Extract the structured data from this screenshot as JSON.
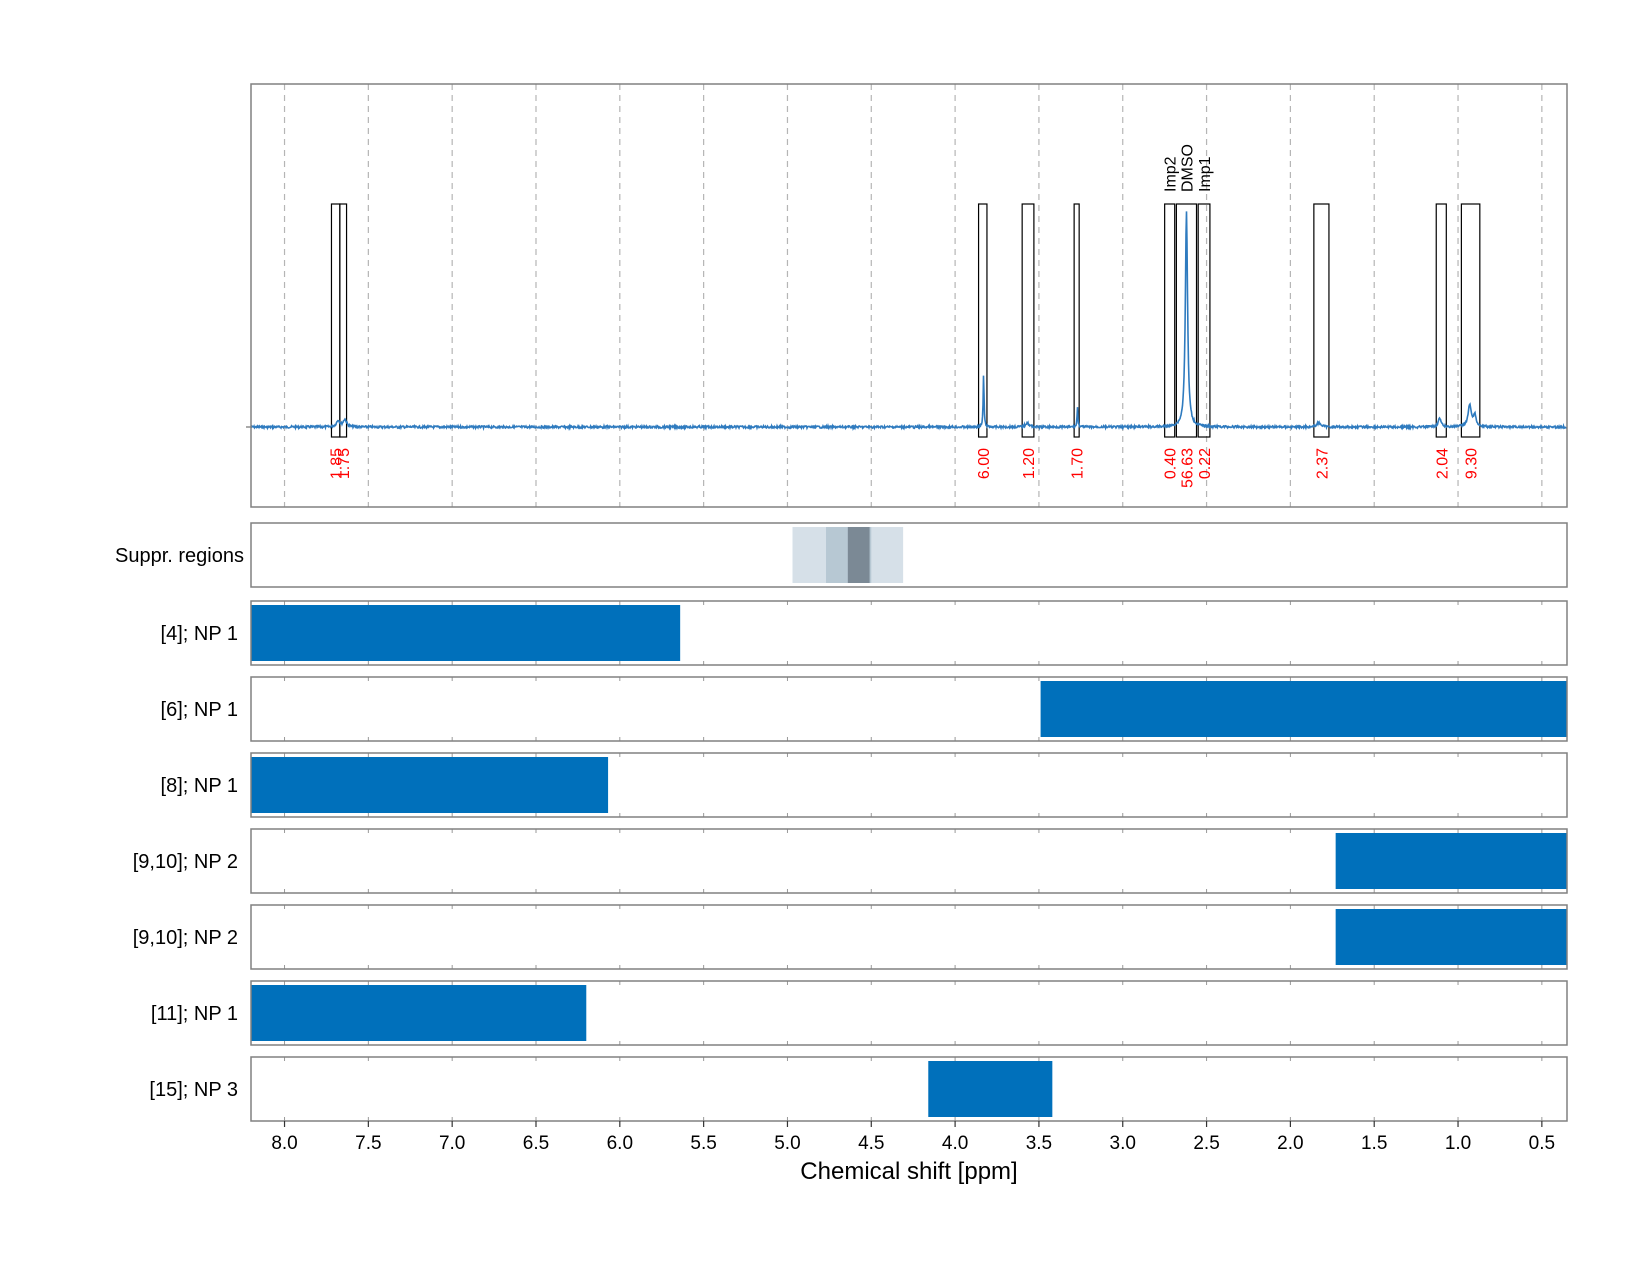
{
  "chart_data": {
    "type": "line",
    "xlabel": "Chemical shift [ppm]",
    "xlim": [
      8.2,
      0.35
    ],
    "x_reversed": true,
    "xticks": [
      8.0,
      7.5,
      7.0,
      6.5,
      6.0,
      5.5,
      5.0,
      4.5,
      4.0,
      3.5,
      3.0,
      2.5,
      2.0,
      1.5,
      1.0,
      0.5
    ],
    "xtick_labels": [
      "8.0",
      "7.5",
      "7.0",
      "6.5",
      "6.0",
      "5.5",
      "5.0",
      "4.5",
      "4.0",
      "3.5",
      "3.0",
      "2.5",
      "2.0",
      "1.5",
      "1.0",
      "0.5"
    ],
    "grid": "vertical dashed",
    "colors": {
      "spectrum": "#2f7bbf",
      "bar": "#0070bb",
      "integral_label": "#ff0000",
      "box": "#000000"
    },
    "spectrum": {
      "baseline": 0,
      "peaks": [
        {
          "center": 7.68,
          "height": 0.03,
          "width": 0.012
        },
        {
          "center": 7.64,
          "height": 0.035,
          "width": 0.012
        },
        {
          "center": 3.83,
          "height": 0.25,
          "width": 0.003
        },
        {
          "center": 3.57,
          "height": 0.02,
          "width": 0.012
        },
        {
          "center": 3.27,
          "height": 0.09,
          "width": 0.003
        },
        {
          "center": 2.62,
          "height": 1.0,
          "width": 0.008
        },
        {
          "center": 1.83,
          "height": 0.02,
          "width": 0.015
        },
        {
          "center": 1.11,
          "height": 0.04,
          "width": 0.01
        },
        {
          "center": 0.93,
          "height": 0.1,
          "width": 0.012
        },
        {
          "center": 0.9,
          "height": 0.05,
          "width": 0.01
        }
      ]
    },
    "integration_regions": [
      {
        "from": 7.72,
        "to": 7.67,
        "integral": "1.85",
        "name": ""
      },
      {
        "from": 7.67,
        "to": 7.63,
        "integral": "1.75",
        "name": ""
      },
      {
        "from": 3.86,
        "to": 3.81,
        "integral": "6.00",
        "name": ""
      },
      {
        "from": 3.6,
        "to": 3.53,
        "integral": "1.20",
        "name": ""
      },
      {
        "from": 3.29,
        "to": 3.26,
        "integral": "1.70",
        "name": ""
      },
      {
        "from": 2.75,
        "to": 2.69,
        "integral": "0.40",
        "name": "Imp2"
      },
      {
        "from": 2.68,
        "to": 2.56,
        "integral": "56.63",
        "name": "DMSO"
      },
      {
        "from": 2.55,
        "to": 2.48,
        "integral": "0.22",
        "name": "Imp1"
      },
      {
        "from": 1.86,
        "to": 1.77,
        "integral": "2.37",
        "name": ""
      },
      {
        "from": 1.13,
        "to": 1.07,
        "integral": "2.04",
        "name": ""
      },
      {
        "from": 0.98,
        "to": 0.87,
        "integral": "9.30",
        "name": ""
      }
    ],
    "suppression_regions": {
      "label": "Suppr. regions",
      "bands": [
        {
          "from": 4.97,
          "to": 4.31,
          "color": "#d6e0e8"
        },
        {
          "from": 4.77,
          "to": 4.5,
          "color": "#b7c8d3"
        },
        {
          "from": 4.64,
          "to": 4.51,
          "color": "#7b8995"
        }
      ]
    },
    "tracks": [
      {
        "label": "[4]; NP 1",
        "from": 8.2,
        "to": 5.64
      },
      {
        "label": "[6]; NP 1",
        "from": 3.49,
        "to": 0.35
      },
      {
        "label": "[8]; NP 1",
        "from": 8.2,
        "to": 6.07
      },
      {
        "label": "[9,10]; NP 2",
        "from": 1.73,
        "to": 0.35
      },
      {
        "label": "[9,10]; NP 2",
        "from": 1.73,
        "to": 0.35
      },
      {
        "label": "[11]; NP 1",
        "from": 8.2,
        "to": 6.2
      },
      {
        "label": "[15]; NP 3",
        "from": 4.16,
        "to": 3.42
      }
    ]
  }
}
